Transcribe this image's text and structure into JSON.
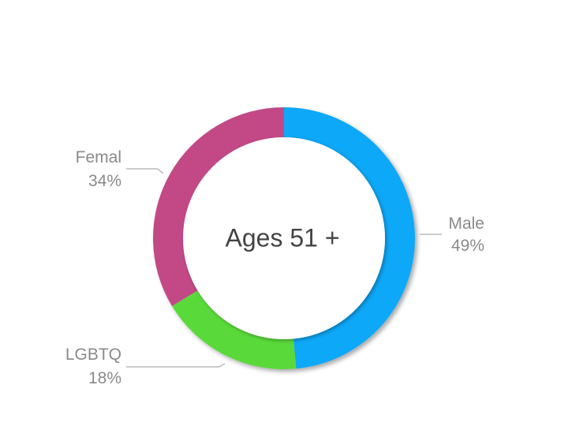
{
  "chart_data": {
    "type": "pie",
    "variant": "donut",
    "center_text": "Ages 51 +",
    "slices": [
      {
        "label": "Male",
        "value": 49,
        "value_text": "49%",
        "color": "#0aa8f7"
      },
      {
        "label": "LGBTQ",
        "value": 18,
        "value_text": "18%",
        "color": "#5ad93a"
      },
      {
        "label": "Femal",
        "value": 34,
        "value_text": "34%",
        "color": "#c24a86"
      }
    ],
    "legend": "none",
    "labels": "outside-with-leader-lines"
  }
}
